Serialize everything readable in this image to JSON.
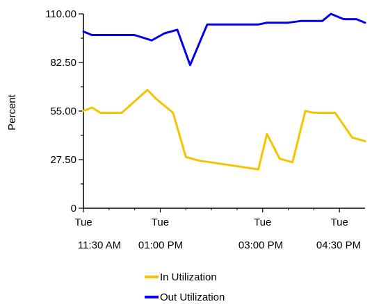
{
  "chart_data": {
    "type": "line",
    "title": "",
    "xlabel": "",
    "ylabel": "Percent",
    "ylim": [
      0,
      110
    ],
    "y_ticks": [
      "110.00",
      "82.50",
      "55.00",
      "27.50",
      "0"
    ],
    "y_tick_values": [
      110,
      82.5,
      55,
      27.5,
      0
    ],
    "x_ticks": [
      {
        "value": "11:30",
        "day": "Tue",
        "time": "11:30 AM"
      },
      {
        "value": "13:00",
        "day": "Tue",
        "time": "01:00 PM"
      },
      {
        "value": "15:00",
        "day": "Tue",
        "time": "03:00 PM"
      },
      {
        "value": "16:30",
        "day": "Tue",
        "time": "04:30 PM"
      }
    ],
    "xlim": [
      "11:30",
      "17:00"
    ],
    "legend_position": "bottom",
    "grid": false,
    "series": [
      {
        "name": "In Utilization",
        "color": "#f5c400",
        "points": [
          [
            "11:30",
            55
          ],
          [
            "11:40",
            57
          ],
          [
            "11:50",
            54
          ],
          [
            "12:15",
            54
          ],
          [
            "12:45",
            67
          ],
          [
            "12:55",
            62
          ],
          [
            "13:15",
            54
          ],
          [
            "13:30",
            29
          ],
          [
            "13:45",
            27
          ],
          [
            "14:55",
            22
          ],
          [
            "15:05",
            42
          ],
          [
            "15:20",
            28
          ],
          [
            "15:35",
            26
          ],
          [
            "15:50",
            55
          ],
          [
            "16:00",
            54
          ],
          [
            "16:25",
            54
          ],
          [
            "16:45",
            40
          ],
          [
            "17:00",
            38
          ]
        ]
      },
      {
        "name": "Out Utilization",
        "color": "#0000ee",
        "points": [
          [
            "11:30",
            100
          ],
          [
            "11:40",
            98
          ],
          [
            "12:30",
            98
          ],
          [
            "12:50",
            95
          ],
          [
            "13:05",
            99
          ],
          [
            "13:20",
            101
          ],
          [
            "13:35",
            81
          ],
          [
            "13:55",
            104
          ],
          [
            "14:55",
            104
          ],
          [
            "15:05",
            105
          ],
          [
            "15:30",
            105
          ],
          [
            "15:45",
            106
          ],
          [
            "16:10",
            106
          ],
          [
            "16:20",
            110
          ],
          [
            "16:35",
            107
          ],
          [
            "16:50",
            107
          ],
          [
            "17:00",
            105
          ]
        ]
      }
    ]
  }
}
